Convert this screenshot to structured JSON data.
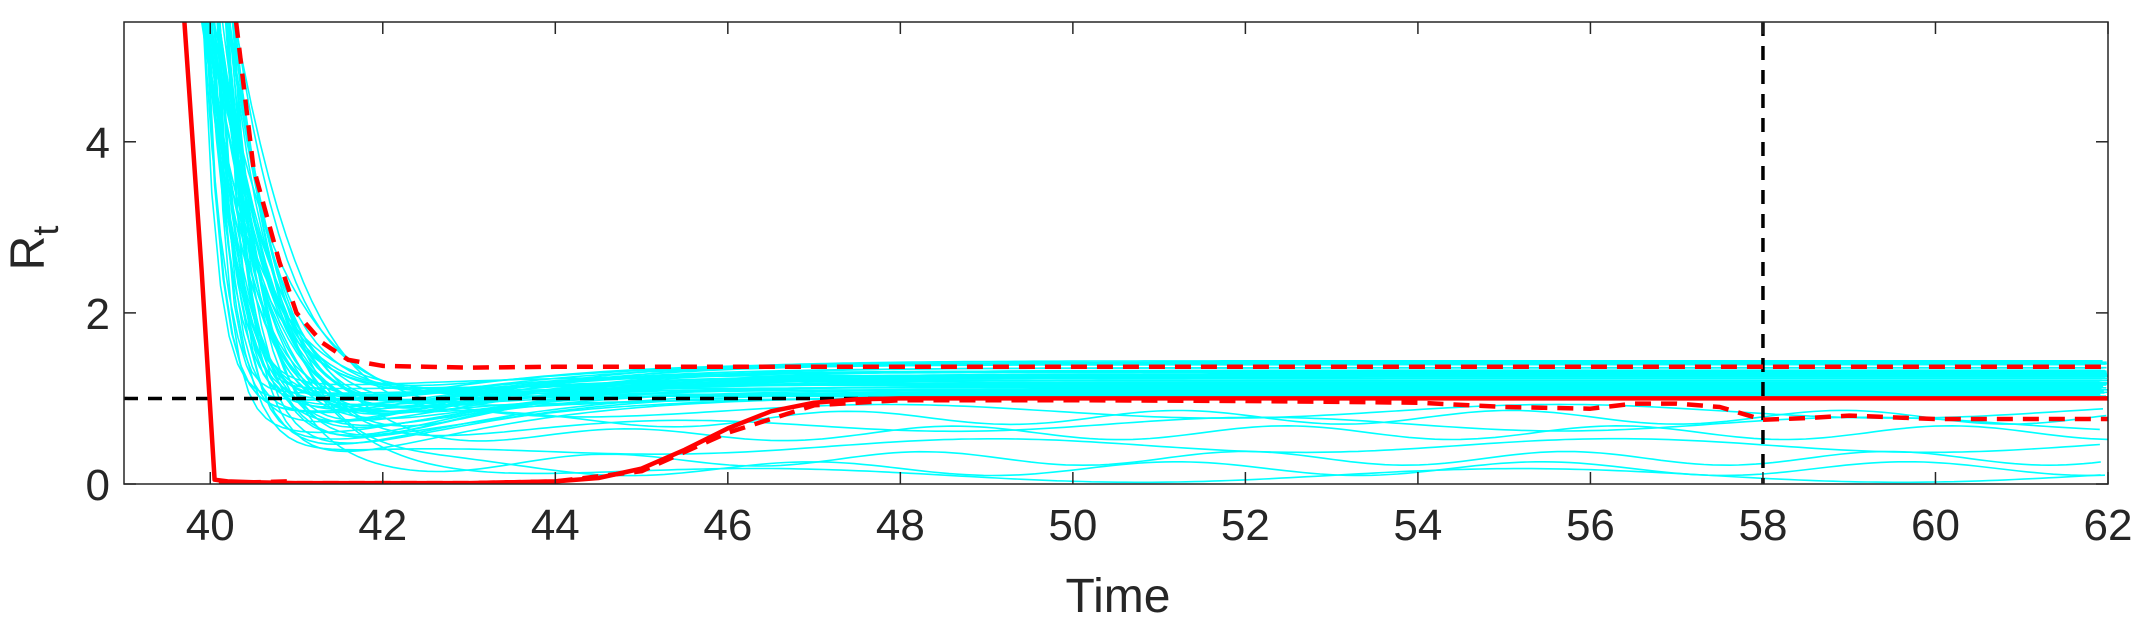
{
  "chart_data": {
    "type": "line",
    "title": "",
    "xlabel": "Time",
    "ylabel": {
      "main": "R",
      "subscript": "t"
    },
    "xlim": [
      39,
      62
    ],
    "ylim": [
      0,
      5.4
    ],
    "xticks": [
      40,
      42,
      44,
      46,
      48,
      50,
      52,
      54,
      56,
      58,
      60,
      62
    ],
    "yticks": [
      0,
      2,
      4
    ],
    "grid": false,
    "legend": "none",
    "colors": {
      "ensemble": "#00ffff",
      "estimate": "#ff0000",
      "reference": "#000000",
      "axis": "#262626"
    },
    "reference_lines": [
      {
        "orientation": "horizontal",
        "value": 1,
        "style": "dashed",
        "color": "#000000"
      },
      {
        "orientation": "vertical",
        "value": 58,
        "style": "dashed",
        "color": "#000000"
      }
    ],
    "series": [
      {
        "style": "solid",
        "color": "#ff0000",
        "x": [
          39.7,
          39.9,
          40.05,
          40.2,
          40.5,
          41,
          42,
          43,
          44,
          44.5,
          45,
          45.5,
          46,
          46.5,
          47,
          47.5,
          48,
          50,
          55,
          58,
          62
        ],
        "y": [
          5.4,
          2.5,
          0.05,
          0.03,
          0.02,
          0.01,
          0.01,
          0.01,
          0.03,
          0.07,
          0.18,
          0.4,
          0.65,
          0.85,
          0.95,
          0.99,
          1.0,
          1.0,
          1.0,
          1.0,
          1.0
        ]
      },
      {
        "style": "dashed",
        "color": "#ff0000",
        "x": [
          40.3,
          40.5,
          40.8,
          41,
          41.3,
          41.6,
          42,
          43,
          44,
          46,
          48,
          50,
          52,
          54,
          56,
          58,
          60,
          62
        ],
        "y": [
          5.4,
          3.7,
          2.6,
          2.0,
          1.65,
          1.45,
          1.38,
          1.36,
          1.37,
          1.37,
          1.37,
          1.37,
          1.37,
          1.37,
          1.37,
          1.37,
          1.37,
          1.37
        ]
      },
      {
        "style": "dashed",
        "color": "#ff0000",
        "x": [
          40.1,
          40.5,
          40.9,
          41,
          42,
          43,
          44,
          45,
          46,
          47,
          48,
          49,
          50,
          52,
          54,
          55,
          56,
          56.5,
          57,
          57.5,
          58,
          58.5,
          59,
          60,
          61,
          62
        ],
        "y": [
          0.0,
          0.02,
          0.03,
          0.01,
          0.01,
          0.01,
          0.03,
          0.15,
          0.6,
          0.92,
          0.98,
          0.98,
          0.98,
          0.97,
          0.95,
          0.9,
          0.88,
          0.94,
          0.94,
          0.9,
          0.75,
          0.77,
          0.8,
          0.76,
          0.76,
          0.76
        ]
      }
    ],
    "ensemble": {
      "count": 60,
      "color": "#00ffff",
      "x_start": 39.9,
      "x_end": 62,
      "y_start": 5.4,
      "plateau_range": [
        1.0,
        1.45
      ],
      "low_tracks": [
        0.1,
        0.18,
        0.3,
        0.45,
        0.6,
        0.7,
        0.78,
        0.85
      ]
    }
  }
}
